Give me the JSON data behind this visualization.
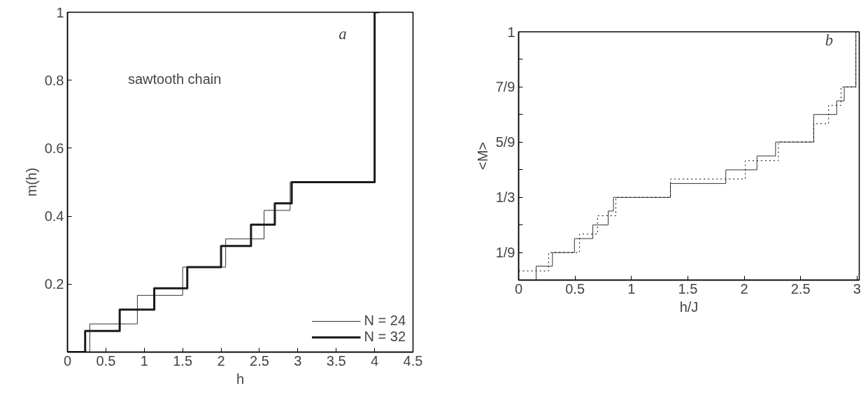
{
  "chart_data": [
    {
      "type": "step",
      "xlabel": "h",
      "ylabel": "m(h)",
      "annotations": [
        "sawtooth chain",
        "a"
      ],
      "xlim": [
        0,
        4.5
      ],
      "ylim": [
        0,
        1
      ],
      "xticks": [
        0,
        0.5,
        1,
        1.5,
        2,
        2.5,
        3,
        3.5,
        4,
        4.5
      ],
      "yticks": [
        0.2,
        0.4,
        0.6,
        0.8,
        1
      ],
      "grid": false,
      "legend": "bottom right",
      "line_style": "solid",
      "series": [
        {
          "name": "N = 24",
          "color": "#333333",
          "x": [
            0,
            0.29,
            0.91,
            1.5,
            2.06,
            2.56,
            2.9,
            4.0,
            4.06
          ],
          "values": [
            0,
            0.083,
            0.167,
            0.25,
            0.333,
            0.417,
            0.5,
            1,
            1
          ]
        },
        {
          "name": "N = 32",
          "color": "#1a1a1a",
          "x": [
            0,
            0.23,
            0.68,
            1.13,
            1.56,
            2.0,
            2.39,
            2.7,
            2.92,
            4.0,
            4.06
          ],
          "values": [
            0,
            0.062,
            0.125,
            0.188,
            0.25,
            0.312,
            0.375,
            0.438,
            0.5,
            1,
            1
          ]
        }
      ]
    },
    {
      "type": "step",
      "xlabel": "h/J",
      "ylabel": "<M>",
      "annotations": [
        "b"
      ],
      "xlim": [
        0,
        3.02
      ],
      "ylim": [
        0,
        1
      ],
      "xticks": [
        0,
        0.5,
        1,
        1.5,
        2,
        2.5,
        3
      ],
      "yticks": [
        {
          "value": 0.1111,
          "label": "1/9"
        },
        {
          "value": 0.2222,
          "label": null
        },
        {
          "value": 0.3333,
          "label": "1/3"
        },
        {
          "value": 0.4444,
          "label": null
        },
        {
          "value": 0.5556,
          "label": "5/9"
        },
        {
          "value": 0.6667,
          "label": null
        },
        {
          "value": 0.7778,
          "label": "7/9"
        },
        {
          "value": 0.8889,
          "label": null
        },
        {
          "value": 1,
          "label": "1"
        }
      ],
      "grid": false,
      "legend": false,
      "series": [
        {
          "color": "#333333",
          "line_style": "solid",
          "x": [
            0.155,
            0.155,
            0.3,
            0.495,
            0.658,
            0.794,
            0.841,
            1.346,
            1.837,
            2.113,
            2.278,
            2.616,
            2.82,
            2.887,
            2.99,
            3.0
          ],
          "values": [
            0,
            0.056,
            0.111,
            0.167,
            0.222,
            0.278,
            0.333,
            0.389,
            0.444,
            0.5,
            0.556,
            0.667,
            0.722,
            0.778,
            1,
            1
          ]
        },
        {
          "color": "#000000",
          "line_style": "dotted",
          "x": [
            0,
            0.266,
            0.54,
            0.699,
            0.862,
            1.346,
            2.01,
            2.303,
            2.616,
            2.748,
            2.858,
            2.99,
            3.0
          ],
          "values": [
            0.037,
            0.111,
            0.185,
            0.259,
            0.333,
            0.407,
            0.481,
            0.556,
            0.63,
            0.704,
            0.778,
            1,
            1
          ]
        }
      ]
    }
  ]
}
